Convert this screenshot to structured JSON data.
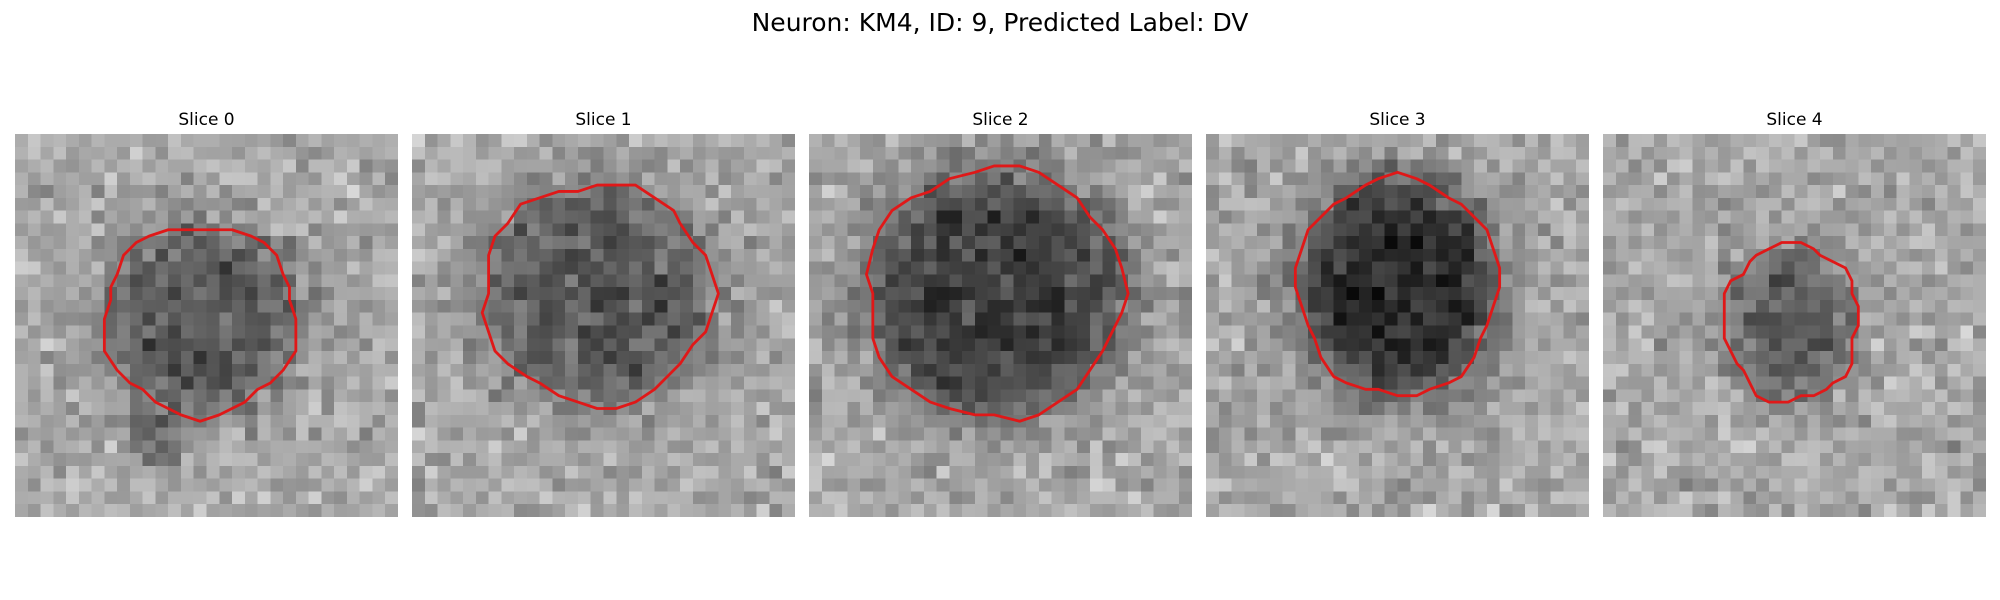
{
  "figure": {
    "title": "Neuron: KM4, ID: 9, Predicted Label: DV"
  },
  "contour_color": "#e01818",
  "slices": [
    {
      "label": "Slice 0",
      "cx": 14.5,
      "cy": 14.5,
      "rx": 7.5,
      "ry": 7.5,
      "depth": 0.32,
      "tail": true
    },
    {
      "label": "Slice 1",
      "cx": 14.5,
      "cy": 12.5,
      "rx": 9.0,
      "ry": 8.6,
      "depth": 0.32,
      "tail": false
    },
    {
      "label": "Slice 2",
      "cx": 14.5,
      "cy": 12.5,
      "rx": 10.0,
      "ry": 9.8,
      "depth": 0.42,
      "tail": false
    },
    {
      "label": "Slice 3",
      "cx": 15.0,
      "cy": 12.0,
      "rx": 7.8,
      "ry": 8.6,
      "depth": 0.5,
      "tail": false
    },
    {
      "label": "Slice 4",
      "cx": 14.7,
      "cy": 14.8,
      "rx": 5.2,
      "ry": 6.2,
      "depth": 0.28,
      "tail": false
    }
  ]
}
